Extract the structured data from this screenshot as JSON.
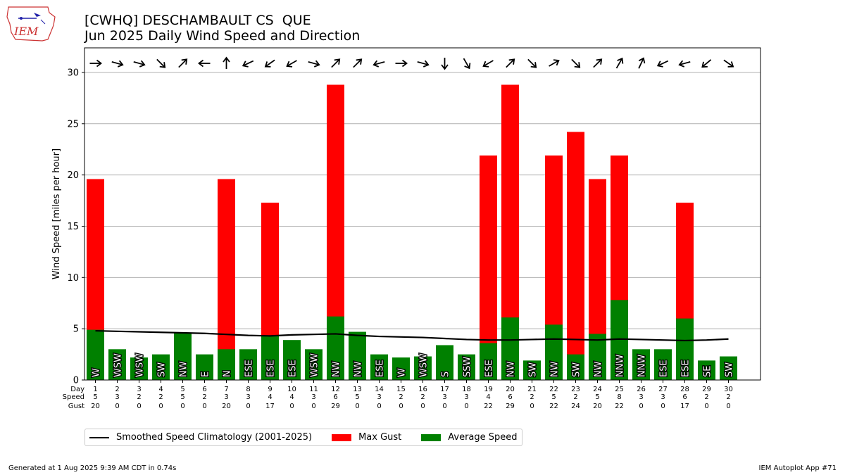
{
  "header": {
    "title_line1": "[CWHQ] DESCHAMBAULT CS  QUE",
    "title_line2": "Jun 2025 Daily Wind Speed and Direction",
    "logo_text": "IEM"
  },
  "chart_data": {
    "type": "bar",
    "title": "[CWHQ] DESCHAMBAULT CS  QUE",
    "subtitle": "Jun 2025 Daily Wind Speed and Direction",
    "ylabel": "Wind Speed [miles per hour]",
    "xlabel": "",
    "ylim": [
      0,
      32.4
    ],
    "yticks": [
      0,
      5,
      10,
      15,
      20,
      25,
      30
    ],
    "grid": "horizontal",
    "legend_position": "bottom-left",
    "row_labels": [
      "Day",
      "Speed",
      "Gust"
    ],
    "days": [
      1,
      2,
      3,
      4,
      5,
      6,
      7,
      8,
      9,
      10,
      11,
      12,
      13,
      14,
      15,
      16,
      17,
      18,
      19,
      20,
      21,
      22,
      23,
      24,
      25,
      26,
      27,
      28,
      29,
      30
    ],
    "avg_speed": [
      4.9,
      3.0,
      2.2,
      2.5,
      4.6,
      2.5,
      3.0,
      3.0,
      4.3,
      3.9,
      3.0,
      6.2,
      4.7,
      2.5,
      2.2,
      2.3,
      3.4,
      2.5,
      3.6,
      6.1,
      1.9,
      5.4,
      2.5,
      4.5,
      7.8,
      3.0,
      3.0,
      6.0,
      1.9,
      2.3
    ],
    "speed_label": [
      "5",
      "3",
      "2",
      "2",
      "5",
      "2",
      "3",
      "3",
      "4",
      "4",
      "3",
      "6",
      "5",
      "3",
      "2",
      "2",
      "3",
      "3",
      "4",
      "6",
      "2",
      "5",
      "2",
      "5",
      "8",
      "3",
      "3",
      "6",
      "2",
      "2"
    ],
    "max_gust": [
      19.6,
      0,
      0,
      0,
      0,
      0,
      19.6,
      0,
      17.3,
      0,
      0,
      28.8,
      0,
      0,
      0,
      0,
      0,
      0,
      21.9,
      28.8,
      0,
      21.9,
      24.2,
      19.6,
      21.9,
      0,
      0,
      17.3,
      0,
      0
    ],
    "gust_label": [
      "20",
      "0",
      "0",
      "0",
      "0",
      "0",
      "20",
      "0",
      "17",
      "0",
      "0",
      "29",
      "0",
      "0",
      "0",
      "0",
      "0",
      "0",
      "22",
      "29",
      "0",
      "22",
      "24",
      "20",
      "22",
      "0",
      "0",
      "17",
      "0",
      "0"
    ],
    "direction": [
      "W",
      "WSW",
      "WSW",
      "SW",
      "NW",
      "E",
      "N",
      "ESE",
      "ESE",
      "ESE",
      "WSW",
      "NW",
      "NW",
      "ESE",
      "W",
      "WSW",
      "S",
      "SSW",
      "ESE",
      "NW",
      "SW",
      "NW",
      "SW",
      "NW",
      "NNW",
      "NNW",
      "ESE",
      "ESE",
      "SE",
      "SW"
    ],
    "arrow_angle": [
      0,
      -15,
      -15,
      -45,
      45,
      180,
      90,
      -155,
      -145,
      -150,
      -15,
      45,
      45,
      -165,
      0,
      -15,
      -90,
      -60,
      -150,
      45,
      -45,
      30,
      -45,
      45,
      60,
      65,
      -155,
      -165,
      -140,
      -35
    ],
    "climatology": [
      4.8,
      4.75,
      4.7,
      4.65,
      4.6,
      4.55,
      4.45,
      4.35,
      4.3,
      4.4,
      4.45,
      4.5,
      4.35,
      4.25,
      4.2,
      4.15,
      4.05,
      3.95,
      3.9,
      3.9,
      3.95,
      4.0,
      3.95,
      3.9,
      4.0,
      3.95,
      3.9,
      3.85,
      3.9,
      4.0
    ],
    "series": [
      {
        "name": "Smoothed Speed Climatology (2001-2025)",
        "color": "#000000"
      },
      {
        "name": "Max Gust",
        "color": "#ff0000"
      },
      {
        "name": "Average Speed",
        "color": "#008000"
      }
    ]
  },
  "footer": {
    "generated": "Generated at 1 Aug 2025 9:39 AM CDT in 0.74s",
    "app": "IEM Autoplot App #71"
  }
}
